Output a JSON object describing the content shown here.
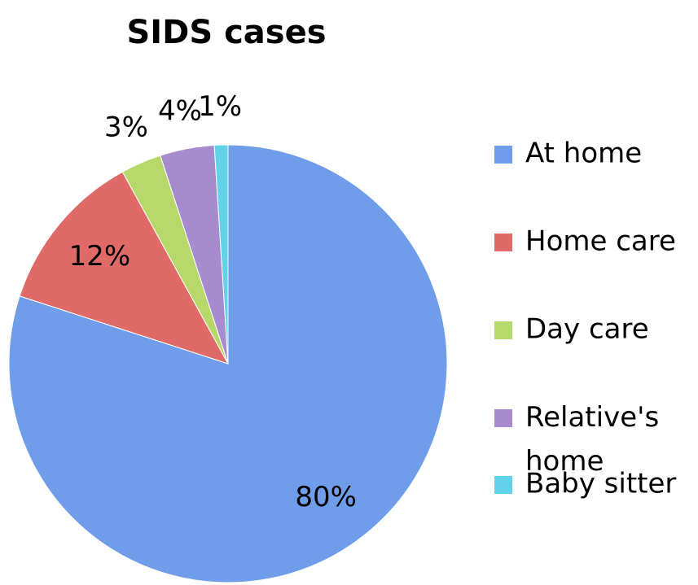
{
  "chart_data": {
    "type": "pie",
    "title": "SIDS cases",
    "categories": [
      "At home",
      "Home care",
      "Day care",
      "Relative's home",
      "Baby sitter"
    ],
    "values": [
      80,
      12,
      3,
      4,
      1
    ],
    "value_labels": [
      "80%",
      "12%",
      "3%",
      "4%",
      "1%"
    ],
    "colors": [
      "#6f9de9",
      "#e06a68",
      "#b7d96c",
      "#a68ccf",
      "#62d1e9"
    ],
    "legend": "right"
  }
}
